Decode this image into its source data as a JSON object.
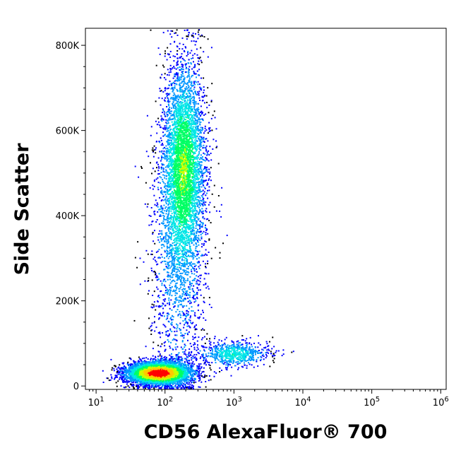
{
  "chart_data": {
    "type": "scatter",
    "style": "flow-cytometry density dot plot (pseudocolor)",
    "xlabel": "CD56 AlexaFluor® 700",
    "ylabel": "Side Scatter",
    "x_scale": "log",
    "xlim": [
      7,
      1200000
    ],
    "ylim": [
      -8000,
      840000
    ],
    "x_ticks": [
      {
        "value": 10,
        "base": "10",
        "exp": "1"
      },
      {
        "value": 100,
        "base": "10",
        "exp": "2"
      },
      {
        "value": 1000,
        "base": "10",
        "exp": "3"
      },
      {
        "value": 10000,
        "base": "10",
        "exp": "4"
      },
      {
        "value": 100000,
        "base": "10",
        "exp": "5"
      },
      {
        "value": 1000000,
        "base": "10",
        "exp": "6"
      }
    ],
    "y_ticks": [
      {
        "value": 0,
        "label": "0"
      },
      {
        "value": 200000,
        "label": "200K"
      },
      {
        "value": 400000,
        "label": "400K"
      },
      {
        "value": 600000,
        "label": "600K"
      },
      {
        "value": 800000,
        "label": "800K"
      }
    ],
    "density_colors": [
      "#0000ff",
      "#0096ff",
      "#00e6e6",
      "#00ff64",
      "#c8ff00",
      "#ffc800",
      "#ff0000"
    ],
    "populations": [
      {
        "name_visible": false,
        "x_center": 80,
        "y_center": 30000,
        "log_x_sd": 0.23,
        "y_sd": 13000,
        "count": 5500,
        "peak_density": 1.0
      },
      {
        "name_visible": false,
        "x_center": 190,
        "y_center": 520000,
        "log_x_sd": 0.15,
        "y_sd": 120000,
        "count": 4200,
        "peak_density": 0.45
      },
      {
        "name_visible": false,
        "x_center": 150,
        "y_center": 300000,
        "log_x_sd": 0.2,
        "y_sd": 180000,
        "count": 1600,
        "peak_density": 0.12
      },
      {
        "name_visible": false,
        "x_center": 1000,
        "y_center": 75000,
        "log_x_sd": 0.25,
        "y_sd": 15000,
        "count": 700,
        "peak_density": 0.3
      }
    ],
    "grid": false,
    "legend": "none"
  }
}
